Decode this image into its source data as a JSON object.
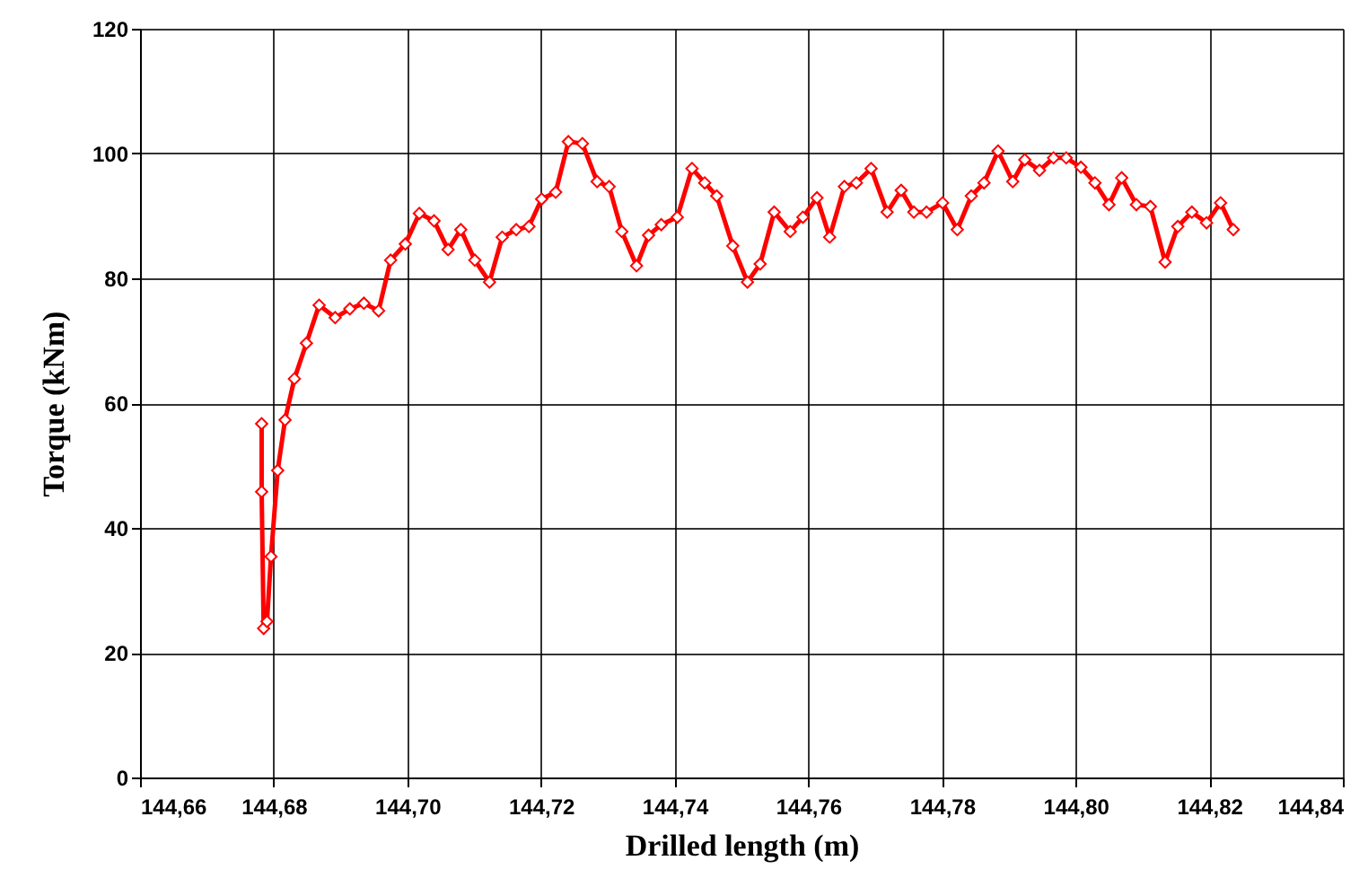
{
  "chart_data": {
    "type": "line",
    "xlabel": "Drilled length  (m)",
    "ylabel": "Torque  (kNm)",
    "x": [
      144.6782,
      144.6782,
      144.6785,
      144.679,
      144.6796,
      144.6806,
      144.6817,
      144.6831,
      144.6849,
      144.6868,
      144.6892,
      144.6914,
      144.6935,
      144.6957,
      144.6975,
      144.6997,
      144.7018,
      144.704,
      144.7061,
      144.708,
      144.7101,
      144.7123,
      144.7142,
      144.7163,
      144.7182,
      144.7201,
      144.7222,
      144.7241,
      144.7262,
      144.7284,
      144.7302,
      144.7321,
      144.7343,
      144.7361,
      144.738,
      144.7404,
      144.7426,
      144.7445,
      144.7463,
      144.7487,
      144.7509,
      144.7528,
      144.7549,
      144.7573,
      144.7592,
      144.7613,
      144.7632,
      144.7654,
      144.7672,
      144.7694,
      144.7718,
      144.7739,
      144.7758,
      144.7777,
      144.7801,
      144.7823,
      144.7844,
      144.7863,
      144.7884,
      144.7906,
      144.7924,
      144.7946,
      144.7967,
      144.7986,
      144.8008,
      144.8029,
      144.805,
      144.8069,
      144.8091,
      144.8112,
      144.8134,
      144.8153,
      144.8174,
      144.8196,
      144.8217,
      144.8236
    ],
    "series": [
      {
        "color": "#ff0000",
        "values": [
          56.7,
          45.8,
          23.9,
          25,
          35.4,
          49.2,
          57.3,
          63.9,
          69.6,
          75.7,
          73.7,
          75.1,
          76,
          74.8,
          82.9,
          85.5,
          90.4,
          89.2,
          84.6,
          87.8,
          82.9,
          79.4,
          86.6,
          87.8,
          88.3,
          92.7,
          93.8,
          101.9,
          101.6,
          95.5,
          94.7,
          87.5,
          82,
          86.9,
          88.6,
          89.8,
          97.6,
          95.3,
          93.2,
          85.2,
          79.4,
          82.3,
          90.6,
          87.5,
          89.8,
          92.9,
          86.6,
          94.7,
          95.3,
          97.6,
          90.6,
          94.1,
          90.6,
          90.6,
          92.1,
          87.8,
          93.2,
          95.3,
          100.4,
          95.5,
          99,
          97.3,
          99.3,
          99.3,
          97.8,
          95.3,
          91.8,
          96.1,
          91.8,
          91.5,
          82.6,
          88.3,
          90.6,
          88.9,
          92.1,
          87.8
        ]
      }
    ],
    "xlim": [
      144.66,
      144.84
    ],
    "xticks": [
      {
        "value": 144.66,
        "label": "144,66"
      },
      {
        "value": 144.68,
        "label": "144,68"
      },
      {
        "value": 144.7,
        "label": "144,70"
      },
      {
        "value": 144.72,
        "label": "144,72"
      },
      {
        "value": 144.74,
        "label": "144,74"
      },
      {
        "value": 144.76,
        "label": "144,76"
      },
      {
        "value": 144.78,
        "label": "144,78"
      },
      {
        "value": 144.8,
        "label": "144,80"
      },
      {
        "value": 144.82,
        "label": "144,82"
      },
      {
        "value": 144.84,
        "label": "144,84"
      }
    ],
    "ylim": [
      0,
      120
    ],
    "yticks": [
      0,
      20,
      40,
      60,
      80,
      100,
      120
    ],
    "grid": true,
    "marker": "diamond",
    "line_style": "solid"
  }
}
